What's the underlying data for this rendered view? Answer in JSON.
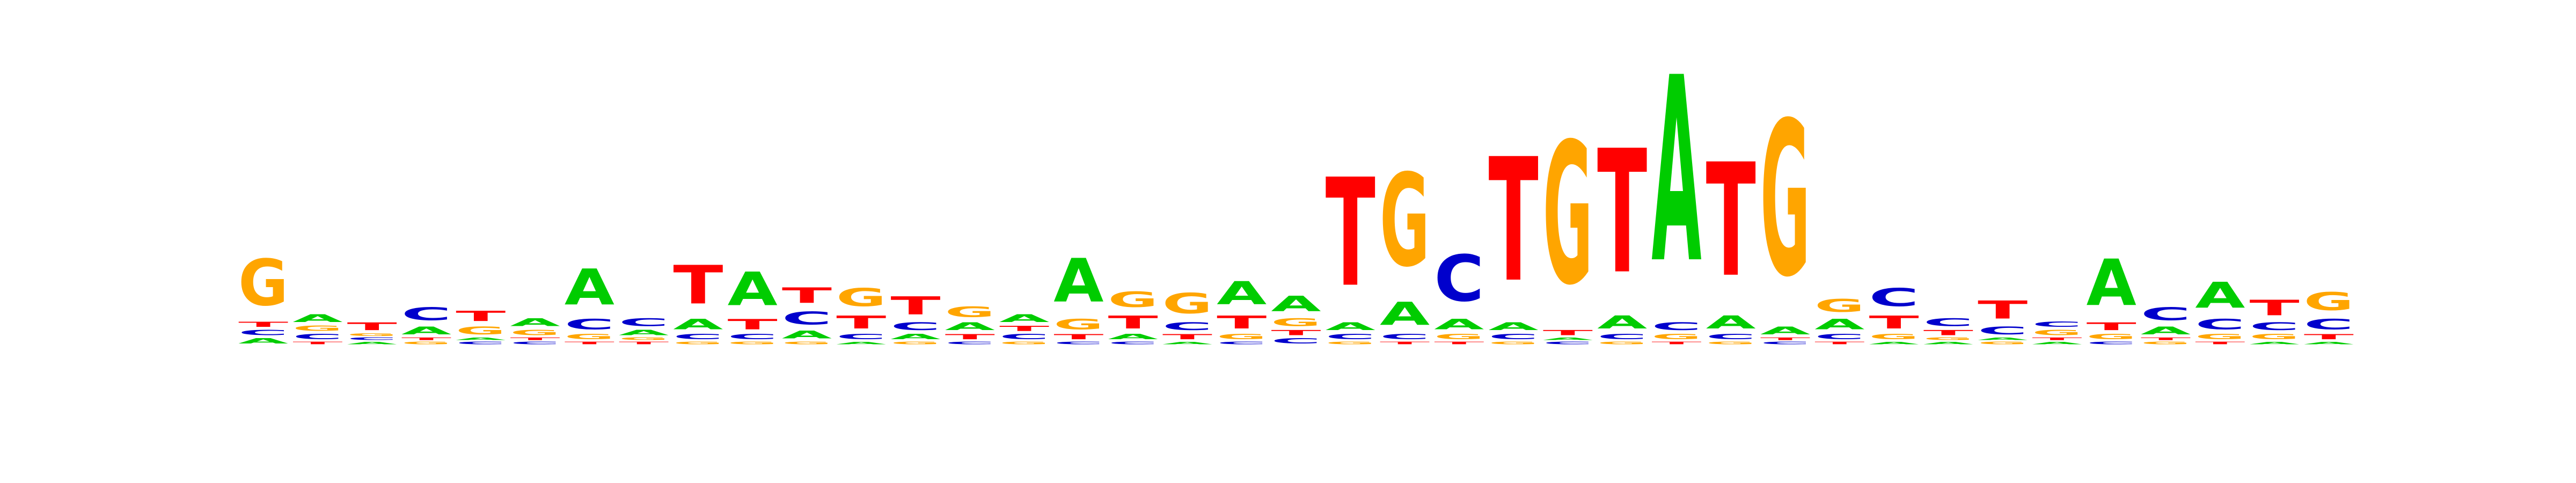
{
  "chart_data": {
    "type": "sequence-logo",
    "title": "",
    "xlabel": "",
    "ylabel": "",
    "alphabet": [
      "A",
      "C",
      "G",
      "T"
    ],
    "colors": {
      "A": "#00cc00",
      "C": "#0000cc",
      "G": "#ffa500",
      "T": "#ff0000"
    },
    "max_bits": 2,
    "columns": [
      {
        "G": 0.18,
        "A": 0.02,
        "C": 0.02,
        "T": 0.02
      },
      {
        "A": 0.03,
        "C": 0.02,
        "G": 0.02,
        "T": 0.01
      },
      {
        "T": 0.03,
        "A": 0.01,
        "C": 0.01,
        "G": 0.01
      },
      {
        "C": 0.05,
        "A": 0.03,
        "G": 0.01,
        "T": 0.01
      },
      {
        "T": 0.04,
        "G": 0.03,
        "C": 0.01,
        "A": 0.01
      },
      {
        "A": 0.03,
        "G": 0.02,
        "C": 0.01,
        "T": 0.01
      },
      {
        "A": 0.14,
        "C": 0.04,
        "G": 0.02,
        "T": 0.01
      },
      {
        "C": 0.03,
        "A": 0.02,
        "T": 0.01,
        "G": 0.01
      },
      {
        "T": 0.15,
        "A": 0.04,
        "C": 0.02,
        "G": 0.01
      },
      {
        "A": 0.13,
        "T": 0.04,
        "C": 0.02,
        "G": 0.01
      },
      {
        "T": 0.06,
        "C": 0.05,
        "A": 0.03,
        "G": 0.01
      },
      {
        "G": 0.07,
        "T": 0.05,
        "C": 0.02,
        "A": 0.01
      },
      {
        "T": 0.07,
        "C": 0.03,
        "A": 0.02,
        "G": 0.01
      },
      {
        "G": 0.04,
        "A": 0.03,
        "T": 0.02,
        "C": 0.01
      },
      {
        "A": 0.03,
        "C": 0.02,
        "T": 0.02,
        "G": 0.01
      },
      {
        "A": 0.17,
        "G": 0.04,
        "T": 0.02,
        "C": 0.01
      },
      {
        "G": 0.06,
        "T": 0.05,
        "A": 0.02,
        "C": 0.01
      },
      {
        "G": 0.08,
        "C": 0.03,
        "T": 0.02,
        "A": 0.01
      },
      {
        "A": 0.09,
        "T": 0.05,
        "G": 0.02,
        "C": 0.01
      },
      {
        "A": 0.06,
        "G": 0.03,
        "C": 0.02,
        "T": 0.02
      },
      {
        "T": 0.42,
        "A": 0.03,
        "C": 0.02,
        "G": 0.01
      },
      {
        "G": 0.36,
        "A": 0.09,
        "C": 0.02,
        "T": 0.01
      },
      {
        "C": 0.18,
        "A": 0.04,
        "G": 0.02,
        "T": 0.01
      },
      {
        "T": 0.48,
        "A": 0.03,
        "C": 0.02,
        "G": 0.01
      },
      {
        "G": 0.55,
        "T": 0.02,
        "C": 0.01,
        "A": 0.01
      },
      {
        "T": 0.48,
        "A": 0.05,
        "C": 0.02,
        "G": 0.01
      },
      {
        "A": 0.72,
        "C": 0.03,
        "G": 0.02,
        "T": 0.01
      },
      {
        "T": 0.44,
        "A": 0.05,
        "C": 0.02,
        "G": 0.01
      },
      {
        "G": 0.6,
        "A": 0.03,
        "C": 0.01,
        "T": 0.01
      },
      {
        "G": 0.05,
        "A": 0.04,
        "C": 0.02,
        "T": 0.01
      },
      {
        "C": 0.07,
        "T": 0.05,
        "G": 0.02,
        "A": 0.01
      },
      {
        "C": 0.03,
        "T": 0.02,
        "A": 0.01,
        "G": 0.01
      },
      {
        "T": 0.07,
        "C": 0.03,
        "G": 0.01,
        "A": 0.01
      },
      {
        "G": 0.02,
        "C": 0.02,
        "A": 0.01,
        "T": 0.01
      },
      {
        "A": 0.18,
        "T": 0.03,
        "G": 0.02,
        "C": 0.01
      },
      {
        "C": 0.05,
        "A": 0.03,
        "G": 0.01,
        "T": 0.01
      },
      {
        "A": 0.1,
        "C": 0.04,
        "G": 0.02,
        "T": 0.01
      },
      {
        "T": 0.06,
        "C": 0.03,
        "G": 0.02,
        "A": 0.01
      },
      {
        "G": 0.07,
        "C": 0.04,
        "T": 0.02,
        "A": 0.01
      }
    ]
  }
}
